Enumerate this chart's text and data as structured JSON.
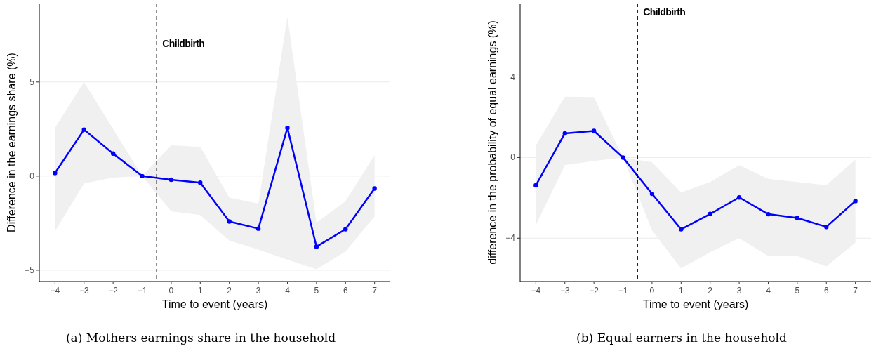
{
  "chart_data": [
    {
      "type": "line",
      "xlabel": "Time to event (years)",
      "ylabel": "Difference in the earnings share (%)",
      "x": [
        -4,
        -3,
        -2,
        -1,
        0,
        1,
        2,
        3,
        4,
        5,
        6,
        7
      ],
      "xlim": [
        -4.54,
        7.54
      ],
      "xticks": [
        -4,
        -3,
        -2,
        -1,
        0,
        1,
        2,
        3,
        4,
        5,
        6,
        7
      ],
      "ylim": [
        -5.6,
        9.17
      ],
      "yticks": [
        -5,
        0,
        5
      ],
      "grid": "y",
      "marker": "circle",
      "line_style": "solid",
      "series": [
        {
          "color": "#0000ff",
          "values": [
            0.16,
            2.47,
            1.2,
            0,
            -0.19,
            -0.35,
            -2.41,
            -2.79,
            2.56,
            -3.75,
            -2.82,
            -0.66
          ],
          "upper": [
            2.57,
            5.0,
            2.5,
            0,
            1.64,
            1.55,
            -1.14,
            -1.46,
            8.47,
            -2.48,
            -1.33,
            1.11
          ],
          "lower": [
            -2.93,
            -0.39,
            -0.08,
            0,
            -1.87,
            -2.07,
            -3.43,
            -3.9,
            -4.44,
            -4.95,
            -4.01,
            -2.14
          ]
        }
      ],
      "ref_lines": [
        {
          "axis": "x",
          "value": -0.5,
          "label": "Childbirth",
          "line_style": "dashed",
          "color": "#000000"
        }
      ],
      "annotations": [
        "(a) Mothers earnings share in the household"
      ]
    },
    {
      "type": "line",
      "xlabel": "Time to event (years)",
      "ylabel": "difference in the probability of equal earnings (%)",
      "x": [
        -4,
        -3,
        -2,
        -1,
        0,
        1,
        2,
        3,
        4,
        5,
        6,
        7
      ],
      "xlim": [
        -4.54,
        7.54
      ],
      "xticks": [
        -4,
        -3,
        -2,
        -1,
        0,
        1,
        2,
        3,
        4,
        5,
        6,
        7
      ],
      "ylim": [
        -6.15,
        7.64
      ],
      "yticks": [
        -4,
        0,
        4
      ],
      "grid": "y",
      "marker": "circle",
      "line_style": "solid",
      "series": [
        {
          "color": "#0000ff",
          "values": [
            -1.38,
            1.2,
            1.32,
            0,
            -1.8,
            -3.56,
            -2.8,
            -1.98,
            -2.81,
            -3.0,
            -3.44,
            -2.16
          ],
          "upper": [
            0.6,
            3.02,
            3.0,
            0,
            -0.23,
            -1.74,
            -1.21,
            -0.38,
            -1.06,
            -1.21,
            -1.37,
            -0.11
          ],
          "lower": [
            -3.35,
            -0.38,
            -0.17,
            0,
            -3.62,
            -5.5,
            -4.7,
            -4.0,
            -4.89,
            -4.89,
            -5.4,
            -4.23
          ]
        }
      ],
      "ref_lines": [
        {
          "axis": "x",
          "value": -0.5,
          "label": "Childbirth",
          "line_style": "dashed",
          "color": "#000000"
        }
      ],
      "annotations": [
        "(b) Equal earners in the household"
      ]
    }
  ]
}
